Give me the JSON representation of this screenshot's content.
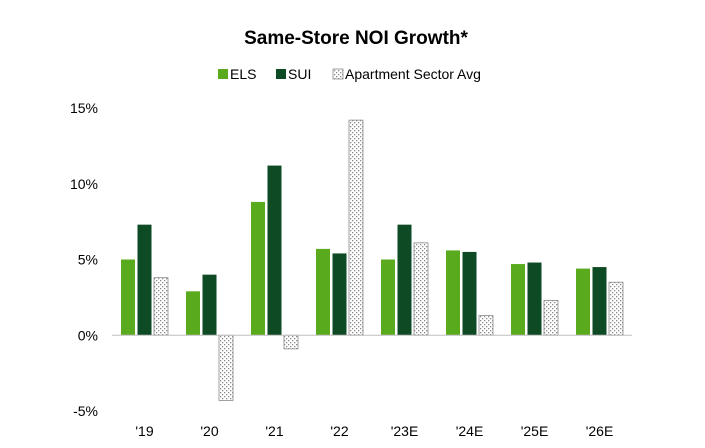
{
  "chart_data": {
    "type": "bar",
    "title": "Same-Store NOI Growth*",
    "xlabel": "",
    "ylabel": "",
    "categories": [
      "'19",
      "'20",
      "'21",
      "'22",
      "'23E",
      "'24E",
      "'25E",
      "'26E"
    ],
    "series": [
      {
        "name": "ELS",
        "color": "#5aaa1e",
        "pattern": "solid",
        "values": [
          5.0,
          2.9,
          8.8,
          5.7,
          5.0,
          5.6,
          4.7,
          4.4
        ]
      },
      {
        "name": "SUI",
        "color": "#0e4a24",
        "pattern": "solid",
        "values": [
          7.3,
          4.0,
          11.2,
          5.4,
          7.3,
          5.5,
          4.8,
          4.5
        ]
      },
      {
        "name": "Apartment Sector Avg",
        "color": "#ffffff",
        "pattern": "dotted",
        "values": [
          3.8,
          -4.3,
          -0.9,
          14.2,
          6.1,
          1.3,
          2.3,
          3.5
        ]
      }
    ],
    "ylim": [
      -5,
      15
    ],
    "yticks": [
      "-5%",
      "0%",
      "5%",
      "10%",
      "15%"
    ],
    "ytick_values": [
      -5,
      0,
      5,
      10,
      15
    ],
    "legend_position": "top-center",
    "grid": false
  }
}
